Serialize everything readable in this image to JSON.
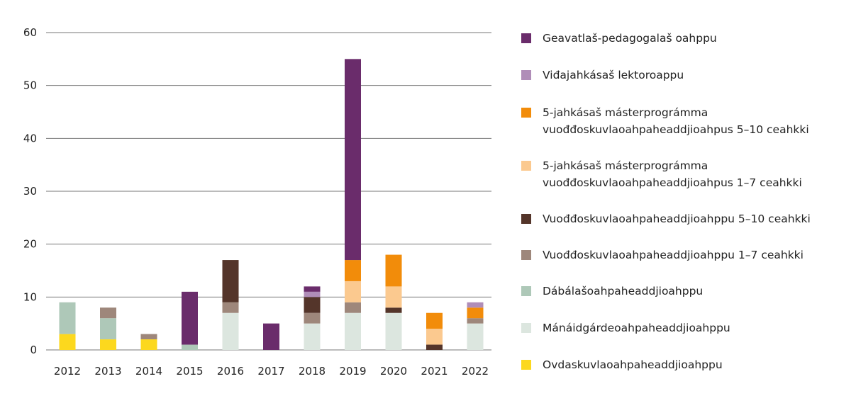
{
  "chart_data": {
    "type": "bar",
    "stacked": true,
    "categories": [
      "2012",
      "2013",
      "2014",
      "2015",
      "2016",
      "2017",
      "2018",
      "2019",
      "2020",
      "2021",
      "2022"
    ],
    "ylim": [
      0,
      60
    ],
    "yticks": [
      0,
      10,
      20,
      30,
      40,
      50,
      60
    ],
    "grid": "horizontal",
    "legend": "right",
    "series": [
      {
        "name": "Ovdaskuvlaoahpaheaddjioahppu",
        "color": "#fcd81e",
        "values": [
          3,
          2,
          2,
          0,
          0,
          0,
          0,
          0,
          0,
          0,
          0
        ]
      },
      {
        "name": "Mánáidgárdeoahpaheaddjioahppu",
        "color": "#dce6df",
        "values": [
          0,
          0,
          0,
          0,
          7,
          0,
          5,
          7,
          7,
          0,
          5
        ]
      },
      {
        "name": "Dábálašoahpaheaddjioahppu",
        "color": "#aec8b8",
        "values": [
          6,
          4,
          0,
          1,
          0,
          0,
          0,
          0,
          0,
          0,
          0
        ]
      },
      {
        "name": "Vuođđoskuvlaoahpaheaddjioahppu  1–7 ceahkki",
        "color": "#9e877b",
        "values": [
          0,
          2,
          1,
          0,
          2,
          0,
          2,
          2,
          0,
          0,
          1
        ]
      },
      {
        "name": "Vuođđoskuvlaoahpaheaddjioahppu 5–10 ceahkki",
        "color": "#54352a",
        "values": [
          0,
          0,
          0,
          0,
          8,
          0,
          3,
          0,
          1,
          1,
          0
        ]
      },
      {
        "name": "5-jahkásaš másterprográmma vuođđoskuvlaoahpaheaddjioahpus 1–7 ceahkki",
        "color": "#fbc98f",
        "values": [
          0,
          0,
          0,
          0,
          0,
          0,
          0,
          4,
          4,
          3,
          0
        ]
      },
      {
        "name": "5-jahkásaš másterprográmma vuođđoskuvlaoahpaheaddjioahpus 5–10 ceahkki",
        "color": "#f28c0a",
        "values": [
          0,
          0,
          0,
          0,
          0,
          0,
          0,
          4,
          6,
          3,
          2
        ]
      },
      {
        "name": "Viđajahkásaš lektoroappu",
        "color": "#b08db8",
        "values": [
          0,
          0,
          0,
          0,
          0,
          0,
          1,
          0,
          0,
          0,
          1
        ]
      },
      {
        "name": "Geavatlaš-pedagogalaš oahppu",
        "color": "#6a2c6b",
        "values": [
          0,
          0,
          0,
          10,
          0,
          5,
          1,
          38,
          0,
          0,
          0
        ]
      }
    ]
  }
}
